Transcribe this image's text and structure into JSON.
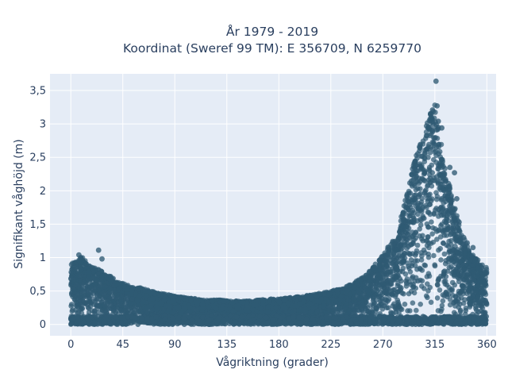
{
  "chart_data": {
    "type": "scatter",
    "title_lines": [
      "År 1979 - 2019",
      "Koordinat (Sweref 99 TM): E 356709, N 6259770"
    ],
    "xlabel": "Vågriktning (grader)",
    "ylabel": "Signifikant våghöjd (m)",
    "xlim": [
      -18,
      368
    ],
    "ylim": [
      -0.17,
      3.75
    ],
    "xticks": [
      0,
      45,
      90,
      135,
      180,
      225,
      270,
      315,
      360
    ],
    "xtick_labels": [
      "0",
      "45",
      "90",
      "135",
      "180",
      "225",
      "270",
      "315",
      "360"
    ],
    "yticks": [
      0,
      0.5,
      1,
      1.5,
      2,
      2.5,
      3,
      3.5
    ],
    "ytick_labels": [
      "0",
      "0,5",
      "1",
      "1,5",
      "2",
      "2,5",
      "3",
      "3,5"
    ],
    "grid": true,
    "marker_color": "#2f5a73",
    "background_color": "#e5ecf6",
    "envelope": {
      "direction_deg": [
        0,
        5,
        10,
        15,
        20,
        25,
        30,
        35,
        40,
        45,
        50,
        55,
        60,
        65,
        70,
        75,
        80,
        85,
        90,
        100,
        110,
        120,
        130,
        140,
        150,
        160,
        170,
        180,
        190,
        200,
        210,
        220,
        230,
        240,
        250,
        260,
        270,
        280,
        285,
        290,
        295,
        300,
        305,
        310,
        313,
        315,
        318,
        320,
        325,
        330,
        335,
        340,
        345,
        350,
        355,
        360
      ],
      "max_height_m": [
        0.9,
        0.98,
        1.02,
        0.88,
        0.85,
        0.83,
        0.75,
        0.72,
        0.65,
        0.62,
        0.58,
        0.55,
        0.55,
        0.52,
        0.5,
        0.47,
        0.46,
        0.45,
        0.42,
        0.4,
        0.38,
        0.36,
        0.37,
        0.35,
        0.35,
        0.36,
        0.38,
        0.38,
        0.4,
        0.42,
        0.45,
        0.48,
        0.52,
        0.58,
        0.68,
        0.82,
        1.05,
        1.3,
        1.55,
        1.9,
        2.3,
        2.6,
        2.85,
        3.1,
        3.25,
        3.4,
        3.0,
        2.75,
        2.3,
        1.9,
        1.6,
        1.3,
        1.1,
        1.0,
        0.92,
        0.85
      ]
    },
    "outliers": [
      {
        "x": 316,
        "y": 3.64
      },
      {
        "x": 317,
        "y": 3.27
      },
      {
        "x": 313,
        "y": 3.21
      },
      {
        "x": 321,
        "y": 2.94
      },
      {
        "x": 318,
        "y": 3.04
      },
      {
        "x": 311,
        "y": 2.95
      },
      {
        "x": 328,
        "y": 2.35
      },
      {
        "x": 332,
        "y": 2.27
      },
      {
        "x": 334,
        "y": 1.88
      },
      {
        "x": 336,
        "y": 1.53
      },
      {
        "x": 324,
        "y": 2.14
      },
      {
        "x": 308,
        "y": 2.62
      },
      {
        "x": 298,
        "y": 1.88
      },
      {
        "x": 292,
        "y": 1.72
      },
      {
        "x": 343,
        "y": 1.22
      },
      {
        "x": 348,
        "y": 1.15
      },
      {
        "x": 24,
        "y": 1.11
      },
      {
        "x": 27,
        "y": 0.98
      },
      {
        "x": 7,
        "y": 1.04
      },
      {
        "x": 340,
        "y": 1.3
      }
    ]
  }
}
